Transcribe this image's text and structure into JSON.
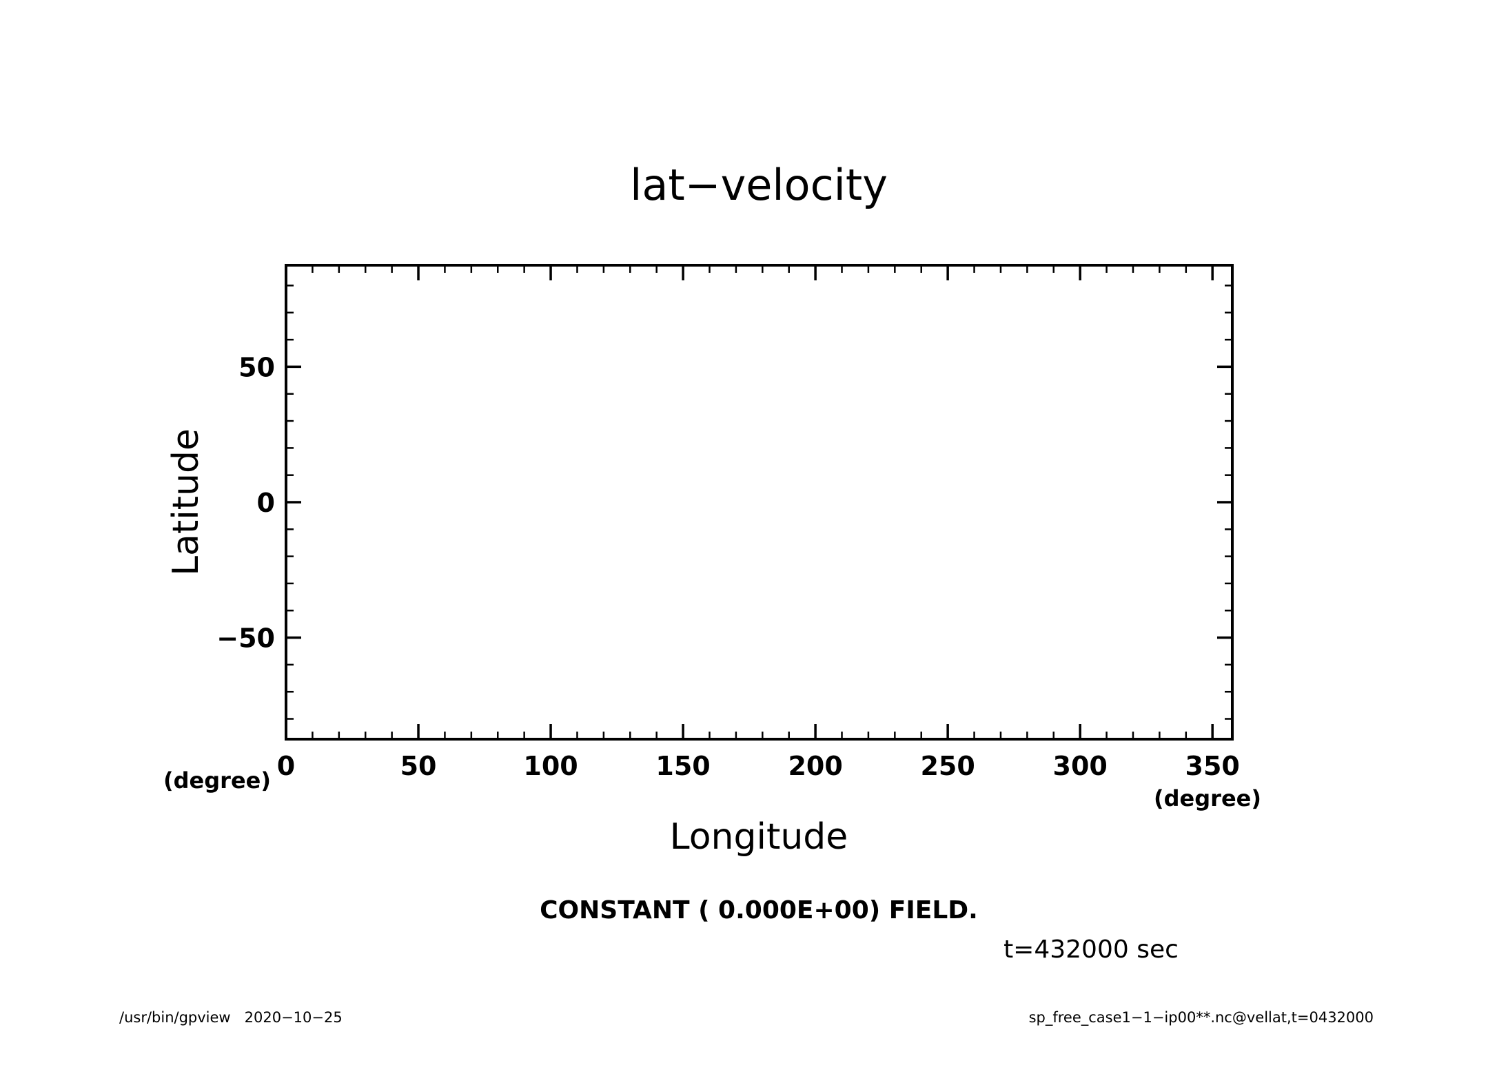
{
  "colors": {
    "background": "#ffffff",
    "foreground": "#000000"
  },
  "chart_data": {
    "type": "contour",
    "title": "lat−velocity",
    "xlabel": "Longitude",
    "ylabel": "Latitude",
    "x_unit": "(degree)",
    "y_unit": "(degree)",
    "xlim": [
      0,
      357.5
    ],
    "ylim": [
      -87.5,
      87.5
    ],
    "x_ticks": [
      0,
      50,
      100,
      150,
      200,
      250,
      300,
      350
    ],
    "x_tick_labels": [
      "0",
      "50",
      "100",
      "150",
      "200",
      "250",
      "300",
      "350"
    ],
    "x_minor_step": 10,
    "y_ticks": [
      50,
      0,
      -50
    ],
    "y_tick_labels": [
      "50",
      "0",
      "−50"
    ],
    "y_minor_step": 10,
    "field_value": 0.0,
    "message": "CONSTANT ( 0.000E+00) FIELD.",
    "time_label": "t=432000 sec",
    "grid": false
  },
  "footer": {
    "left": "/usr/bin/gpview   2020−10−25",
    "right": "sp_free_case1−1−ip00**.nc@vellat,t=0432000"
  }
}
